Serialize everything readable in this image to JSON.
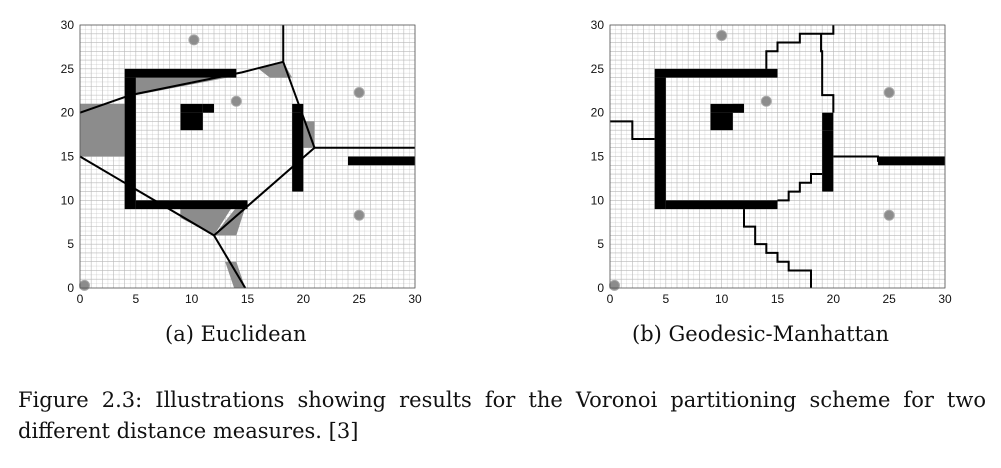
{
  "figure": {
    "caption": "Figure 2.3: Illustrations showing results for the Voronoi partitioning scheme for two different distance measures. [3]"
  },
  "panels": [
    {
      "id": "a",
      "subcaption": "(a) Euclidean",
      "xlim": [
        0,
        30
      ],
      "ylim": [
        0,
        30
      ],
      "xticks": [
        0,
        5,
        10,
        15,
        20,
        25,
        30
      ],
      "yticks": [
        0,
        5,
        10,
        15,
        20,
        25,
        30
      ],
      "grid": true,
      "colors": {
        "grid": "#b9b9b9",
        "obstacle": "#000000",
        "region": "#8c8c8c",
        "seed": "#8c8c8c",
        "boundary": "#000000"
      },
      "seeds": [
        [
          0.4,
          0.3
        ],
        [
          10.2,
          28.3
        ],
        [
          14,
          21.3
        ],
        [
          25,
          22.3
        ],
        [
          25,
          8.3
        ]
      ],
      "obstacles": [
        [
          4,
          24,
          14,
          25
        ],
        [
          4,
          9,
          5,
          24
        ],
        [
          5,
          9,
          15,
          10
        ],
        [
          9,
          20,
          11,
          21
        ],
        [
          9,
          18,
          11,
          20
        ],
        [
          11,
          20,
          12,
          21
        ],
        [
          19,
          20,
          20,
          21
        ],
        [
          19,
          11,
          20,
          20
        ],
        [
          24,
          14,
          30,
          15
        ]
      ],
      "shaded_regions": [
        [
          [
            0,
            21
          ],
          [
            4,
            21
          ],
          [
            4,
            15
          ],
          [
            0,
            15
          ]
        ],
        [
          [
            5,
            22
          ],
          [
            14,
            24.2
          ],
          [
            5,
            24
          ]
        ],
        [
          [
            9,
            10
          ],
          [
            14,
            10
          ],
          [
            12,
            6
          ],
          [
            9,
            8
          ]
        ],
        [
          [
            13,
            3
          ],
          [
            14,
            3
          ],
          [
            14.8,
            0
          ],
          [
            13.8,
            0
          ]
        ],
        [
          [
            17,
            24
          ],
          [
            19,
            24
          ],
          [
            18.2,
            25.8
          ],
          [
            16,
            25
          ]
        ],
        [
          [
            20,
            19
          ],
          [
            21,
            19
          ],
          [
            21,
            16
          ],
          [
            20,
            16
          ]
        ],
        [
          [
            12,
            6
          ],
          [
            14,
            6
          ],
          [
            15,
            10
          ],
          [
            14.5,
            10
          ]
        ]
      ],
      "boundaries": [
        [
          [
            0,
            20
          ],
          [
            4.5,
            22
          ],
          [
            14.5,
            24.6
          ],
          [
            18.2,
            25.8
          ]
        ],
        [
          [
            18.2,
            30
          ],
          [
            18.2,
            25.8
          ]
        ],
        [
          [
            18.2,
            25.8
          ],
          [
            21,
            16
          ]
        ],
        [
          [
            21,
            16
          ],
          [
            30,
            16
          ]
        ],
        [
          [
            0,
            15
          ],
          [
            12,
            6
          ],
          [
            21,
            16
          ]
        ],
        [
          [
            12,
            6
          ],
          [
            14.8,
            0
          ]
        ]
      ]
    },
    {
      "id": "b",
      "subcaption": "(b) Geodesic-Manhattan",
      "xlim": [
        0,
        30
      ],
      "ylim": [
        0,
        30
      ],
      "xticks": [
        0,
        5,
        10,
        15,
        20,
        25,
        30
      ],
      "yticks": [
        0,
        5,
        10,
        15,
        20,
        25,
        30
      ],
      "grid": true,
      "colors": {
        "grid": "#b9b9b9",
        "obstacle": "#000000",
        "region": "#8c8c8c",
        "seed": "#8c8c8c",
        "boundary": "#000000"
      },
      "seeds": [
        [
          0.4,
          0.3
        ],
        [
          10,
          28.8
        ],
        [
          14,
          21.3
        ],
        [
          25,
          22.3
        ],
        [
          25,
          8.3
        ]
      ],
      "obstacles": [
        [
          4,
          24,
          15,
          25
        ],
        [
          4,
          9,
          5,
          24
        ],
        [
          5,
          9,
          15,
          10
        ],
        [
          9,
          20,
          12,
          21
        ],
        [
          9,
          18,
          11,
          20
        ],
        [
          11,
          20,
          12,
          21
        ],
        [
          19,
          18,
          20,
          20
        ],
        [
          19,
          11,
          20,
          18
        ],
        [
          24,
          14,
          30,
          15
        ]
      ],
      "shaded_regions": [],
      "boundaries": [
        [
          [
            0,
            19
          ],
          [
            2,
            19
          ],
          [
            2,
            17
          ],
          [
            4,
            17
          ]
        ],
        [
          [
            14,
            25
          ],
          [
            14,
            27
          ],
          [
            15,
            27
          ],
          [
            15,
            28
          ],
          [
            17,
            28
          ],
          [
            17,
            29
          ],
          [
            20,
            29
          ],
          [
            20,
            30
          ]
        ],
        [
          [
            18.9,
            29
          ],
          [
            18.9,
            27
          ],
          [
            19,
            27
          ],
          [
            19,
            22
          ],
          [
            20,
            22
          ],
          [
            20,
            20
          ]
        ],
        [
          [
            20,
            15
          ],
          [
            24,
            15
          ],
          [
            24,
            14.5
          ],
          [
            30,
            14.5
          ]
        ],
        [
          [
            15,
            10
          ],
          [
            16,
            10
          ],
          [
            16,
            11
          ],
          [
            17,
            11
          ],
          [
            17,
            12
          ],
          [
            18,
            12
          ],
          [
            18,
            13
          ],
          [
            19,
            13
          ]
        ],
        [
          [
            12,
            9
          ],
          [
            12,
            7
          ],
          [
            13,
            7
          ],
          [
            13,
            5
          ],
          [
            14,
            5
          ],
          [
            14,
            4
          ],
          [
            15,
            4
          ],
          [
            15,
            3
          ],
          [
            16,
            3
          ],
          [
            16,
            2
          ],
          [
            18,
            2
          ],
          [
            18,
            0
          ]
        ]
      ]
    }
  ]
}
